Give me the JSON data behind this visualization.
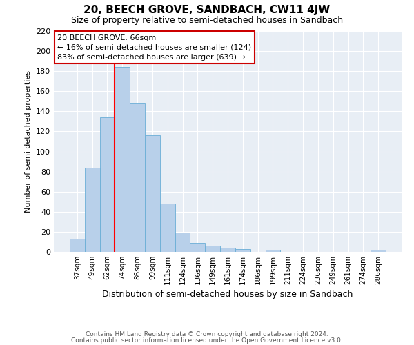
{
  "title": "20, BEECH GROVE, SANDBACH, CW11 4JW",
  "subtitle": "Size of property relative to semi-detached houses in Sandbach",
  "xlabel": "Distribution of semi-detached houses by size in Sandbach",
  "ylabel": "Number of semi-detached properties",
  "bin_labels": [
    "37sqm",
    "49sqm",
    "62sqm",
    "74sqm",
    "86sqm",
    "99sqm",
    "111sqm",
    "124sqm",
    "136sqm",
    "149sqm",
    "161sqm",
    "174sqm",
    "186sqm",
    "199sqm",
    "211sqm",
    "224sqm",
    "236sqm",
    "249sqm",
    "261sqm",
    "274sqm",
    "286sqm"
  ],
  "bar_heights": [
    13,
    84,
    134,
    184,
    148,
    116,
    48,
    19,
    9,
    6,
    4,
    3,
    0,
    2,
    0,
    0,
    0,
    0,
    0,
    0,
    2
  ],
  "bar_color": "#b8d0ea",
  "bar_edge_color": "#6aaed6",
  "vline_color": "red",
  "vline_position": 2.5,
  "ylim": [
    0,
    220
  ],
  "yticks": [
    0,
    20,
    40,
    60,
    80,
    100,
    120,
    140,
    160,
    180,
    200,
    220
  ],
  "annotation_title": "20 BEECH GROVE: 66sqm",
  "annotation_line1": "← 16% of semi-detached houses are smaller (124)",
  "annotation_line2": "83% of semi-detached houses are larger (639) →",
  "annotation_box_facecolor": "#ffffff",
  "annotation_box_edgecolor": "#cc0000",
  "footer1": "Contains HM Land Registry data © Crown copyright and database right 2024.",
  "footer2": "Contains public sector information licensed under the Open Government Licence v3.0.",
  "fig_facecolor": "#ffffff",
  "plot_facecolor": "#e8eef5",
  "grid_color": "#ffffff",
  "title_fontsize": 11,
  "subtitle_fontsize": 9,
  "ylabel_fontsize": 8,
  "xlabel_fontsize": 9,
  "tick_fontsize": 7.5,
  "ytick_fontsize": 8,
  "footer_fontsize": 6.5,
  "annotation_fontsize": 8
}
